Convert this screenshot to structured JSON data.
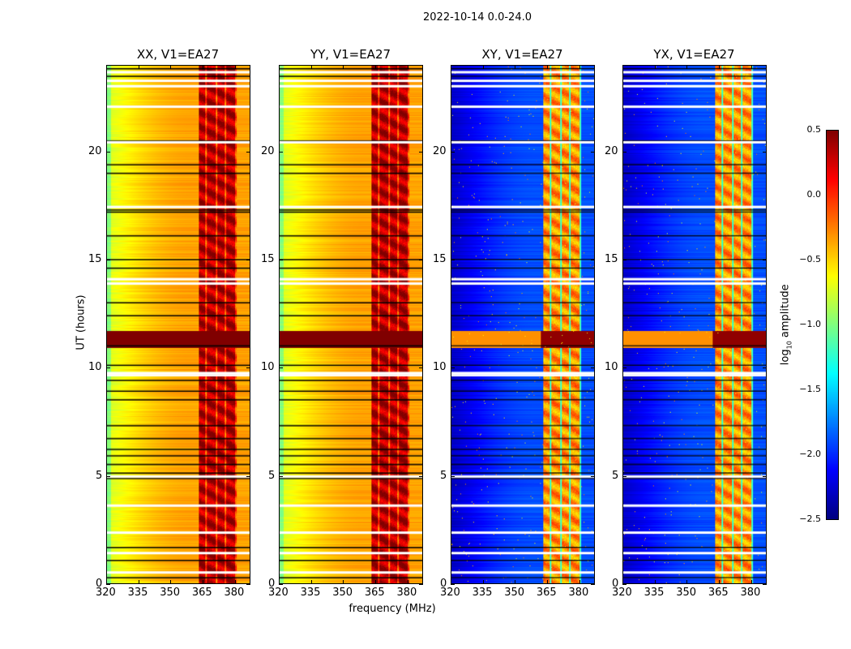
{
  "chart_data": {
    "type": "heatmap",
    "title": "2022-10-14 0.0-24.0",
    "xlabel": "frequency (MHz)",
    "ylabel": "UT (hours)",
    "xlim": [
      320,
      387
    ],
    "ylim": [
      0,
      24
    ],
    "xticks": [
      320,
      335,
      350,
      365,
      380
    ],
    "yticks": [
      0,
      5,
      10,
      15,
      20
    ],
    "colormap": "jet",
    "colorbar": {
      "label": "log10 amplitude",
      "label_main": "log",
      "label_sub": "10",
      "label_rest": " amplitude",
      "range": [
        -2.5,
        0.5
      ],
      "ticks": [
        "0.5",
        "0.0",
        "−0.5",
        "−1.0",
        "−1.5",
        "−2.0",
        "−2.5"
      ],
      "tick_values": [
        0.5,
        0.0,
        -0.5,
        -1.0,
        -1.5,
        -2.0,
        -2.5
      ]
    },
    "panels": [
      {
        "title": "XX, V1=EA27",
        "kind": "parallel",
        "base_low": -0.75,
        "base_high": -0.35,
        "rfi_level": 0.25
      },
      {
        "title": "YY, V1=EA27",
        "kind": "parallel",
        "base_low": -0.75,
        "base_high": -0.35,
        "rfi_level": 0.25
      },
      {
        "title": "XY, V1=EA27",
        "kind": "cross",
        "base_low": -2.3,
        "base_high": -1.9,
        "rfi_level": -0.4
      },
      {
        "title": "YX, V1=EA27",
        "kind": "cross",
        "base_low": -2.3,
        "base_high": -1.9,
        "rfi_level": -0.4
      }
    ],
    "rfi_band_mhz": [
      363,
      381
    ],
    "rfi_subbands_mhz": [
      [
        363,
        366.3
      ],
      [
        367,
        371
      ],
      [
        372,
        375.3
      ],
      [
        376,
        380
      ]
    ],
    "bright_time_band_hours": [
      10.9,
      11.7
    ],
    "flagged_rows_hours": [
      0.5,
      1.4,
      2.35,
      3.6,
      4.95,
      9.65,
      9.75,
      13.9,
      14.1,
      17.45,
      20.45,
      22.1,
      23.05,
      23.3,
      23.7
    ],
    "dark_rows_hours": [
      0.25,
      1.05,
      1.65,
      4.85,
      5.1,
      5.5,
      5.9,
      6.2,
      6.7,
      7.3,
      8.5,
      8.9,
      9.4,
      10.1,
      11.0,
      12.4,
      13.0,
      14.6,
      15.0,
      16.1,
      17.2,
      17.3,
      19.0,
      19.4,
      20.5,
      23.5,
      23.85
    ]
  }
}
